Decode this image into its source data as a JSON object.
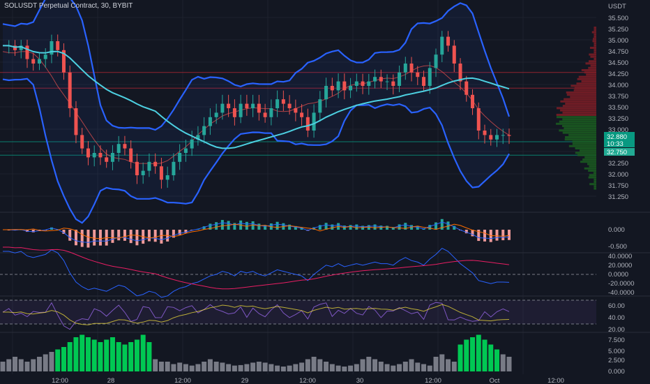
{
  "window": {
    "title": "SOLUSDT Perpetual Contract, 30, BYBIT",
    "currency": "USDT"
  },
  "colors": {
    "background": "#131722",
    "up": "#26a69a",
    "down": "#ef5350",
    "bollinger": "#2962ff",
    "ma_long": "#4dd0e1",
    "volume_up": "#00c853",
    "volume_down": "#787b86",
    "price_tag": "#089981"
  },
  "price_axis": {
    "ticks": [
      "35.500",
      "35.250",
      "35.000",
      "34.750",
      "34.500",
      "34.250",
      "34.000",
      "33.750",
      "33.500",
      "33.250",
      "33.000",
      "32.750",
      "32.500",
      "32.250",
      "32.000",
      "31.750",
      "31.250"
    ],
    "current_price": "32.880",
    "countdown": "10:33",
    "level_price": "32.750"
  },
  "macd_axis": {
    "ticks": [
      "0.000",
      "-0.500"
    ]
  },
  "osc_axis": {
    "ticks": [
      "40.0000",
      "20.0000",
      "0.0000",
      "-20.0000",
      "-40.0000"
    ]
  },
  "rsi_axis": {
    "ticks": [
      "60.00",
      "40.00",
      "20.00"
    ]
  },
  "volume_axis": {
    "ticks": [
      "7.500",
      "5.000",
      "2.500",
      "0.000"
    ]
  },
  "time_axis": {
    "labels": [
      "12:00",
      "28",
      "12:00",
      "29",
      "12:00",
      "30",
      "12:00",
      "Oct",
      "12:00"
    ]
  },
  "chart_data": [
    {
      "type": "candlestick",
      "title": "",
      "approx_close_path": [
        34.9,
        34.9,
        34.8,
        34.9,
        34.6,
        34.5,
        34.6,
        34.7,
        35.0,
        34.8,
        34.3,
        33.5,
        32.9,
        32.6,
        32.4,
        32.5,
        32.4,
        32.3,
        32.5,
        32.7,
        32.6,
        32.3,
        32.0,
        32.1,
        32.3,
        32.2,
        31.9,
        32.0,
        32.3,
        32.5,
        32.6,
        32.8,
        32.9,
        33.1,
        33.3,
        33.4,
        33.6,
        33.5,
        33.3,
        33.6,
        33.5,
        33.6,
        33.4,
        33.3,
        33.5,
        33.7,
        33.6,
        33.5,
        33.4,
        33.3,
        33.0,
        33.4,
        33.7,
        34.0,
        33.9,
        34.1,
        33.9,
        34.0,
        34.1,
        34.0,
        34.1,
        34.2,
        34.1,
        34.1,
        34.0,
        34.3,
        34.5,
        34.3,
        34.2,
        34.0,
        34.4,
        34.7,
        35.1,
        34.9,
        34.5,
        34.1,
        33.8,
        33.5,
        33.0,
        32.9,
        32.8,
        32.9,
        32.9,
        32.88
      ],
      "current_price": 32.88,
      "ylim": [
        31.25,
        35.75
      ]
    },
    {
      "type": "bar",
      "title": "",
      "series": [
        {
          "values": [
            2.0,
            2.5,
            3.0,
            2.5,
            2.0,
            2.5,
            3.0,
            3.5,
            4.0,
            4.5,
            5.0,
            6.0,
            7.0,
            7.5,
            7.0,
            6.5,
            6.0,
            6.5,
            7.0,
            6.0,
            5.5,
            6.0,
            6.5,
            7.5,
            6.0,
            2.5,
            2.0,
            2.0,
            1.5,
            1.8,
            1.5,
            1.2,
            1.5,
            2.0,
            2.5,
            2.0,
            1.8,
            1.5,
            1.2,
            1.3,
            1.5,
            1.8,
            2.0,
            1.8,
            1.5,
            1.2,
            1.0,
            1.2,
            1.5,
            1.8,
            2.5,
            3.0,
            2.5,
            2.0,
            1.5,
            1.2,
            1.0,
            1.2,
            1.5,
            2.5,
            3.0,
            2.5,
            2.0,
            1.5,
            1.2,
            1.5,
            2.0,
            2.5,
            1.8,
            1.5,
            1.2,
            3.0,
            3.5,
            2.5,
            2.0,
            5.5,
            6.5,
            7.0,
            7.5,
            6.5,
            5.5,
            4.5,
            3.5,
            3.0
          ]
        }
      ],
      "ylim": [
        0,
        8
      ]
    }
  ]
}
